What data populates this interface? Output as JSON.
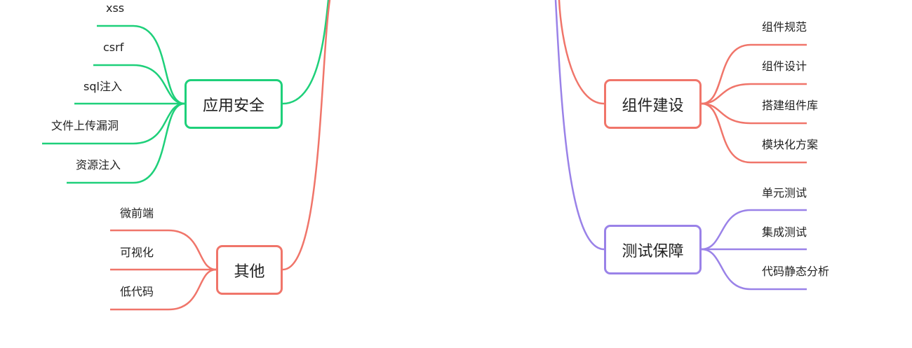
{
  "colors": {
    "green": "#1ed07a",
    "red": "#f0756a",
    "purple": "#9a82e8"
  },
  "nodes": {
    "security": {
      "label": "应用安全",
      "color": "#1ed07a",
      "children": [
        "xss",
        "csrf",
        "sql注入",
        "文件上传漏洞",
        "资源注入"
      ]
    },
    "other": {
      "label": "其他",
      "color": "#f0756a",
      "children": [
        "微前端",
        "可视化",
        "低代码"
      ]
    },
    "components": {
      "label": "组件建设",
      "color": "#f0756a",
      "children": [
        "组件规范",
        "组件设计",
        "搭建组件库",
        "模块化方案"
      ]
    },
    "testing": {
      "label": "测试保障",
      "color": "#9a82e8",
      "children": [
        "单元测试",
        "集成测试",
        "代码静态分析"
      ]
    }
  }
}
